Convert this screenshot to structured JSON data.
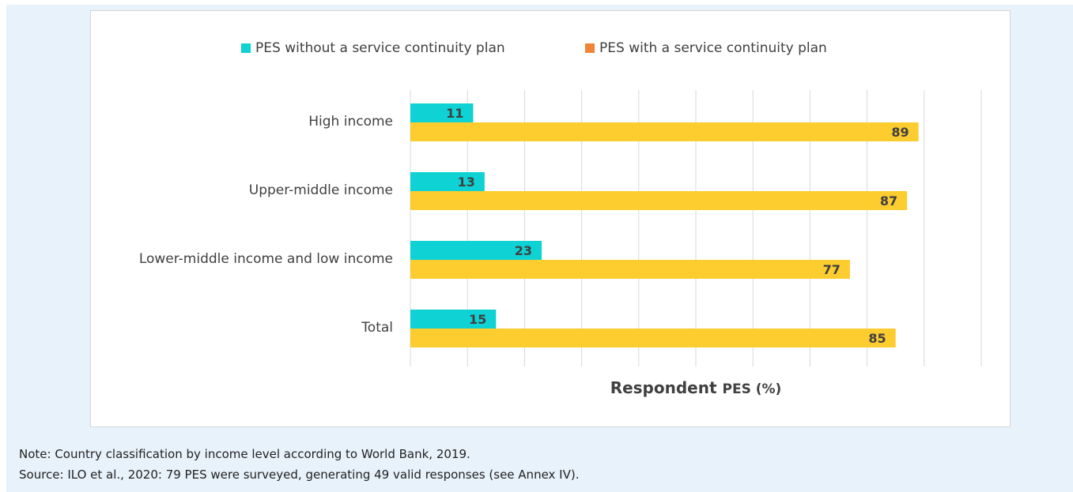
{
  "chart_data": {
    "type": "bar",
    "orientation": "horizontal",
    "categories": [
      "High income",
      "Upper-middle income",
      "Lower-middle income and low income",
      "Total"
    ],
    "series": [
      {
        "name": "PES without a service continuity plan",
        "color": "#0ed2d4",
        "values": [
          11,
          13,
          23,
          15
        ]
      },
      {
        "name": "PES with a service continuity plan",
        "color": "#fdcc2f",
        "legend_color": "#f0853a",
        "values": [
          89,
          87,
          77,
          85
        ]
      }
    ],
    "xlabel": "Respondent PES (%)",
    "xlabel_parts": [
      "Respondent ",
      "PES (%)"
    ],
    "xlim": [
      0,
      100
    ],
    "grid": true,
    "legend_position": "top",
    "data_labels": true
  },
  "notes": {
    "note": "Note: Country classification by income level according to World Bank, 2019.",
    "source": "Source: ILO et al., 2020: 79 PES were surveyed, generating 49 valid responses (see Annex IV)."
  }
}
